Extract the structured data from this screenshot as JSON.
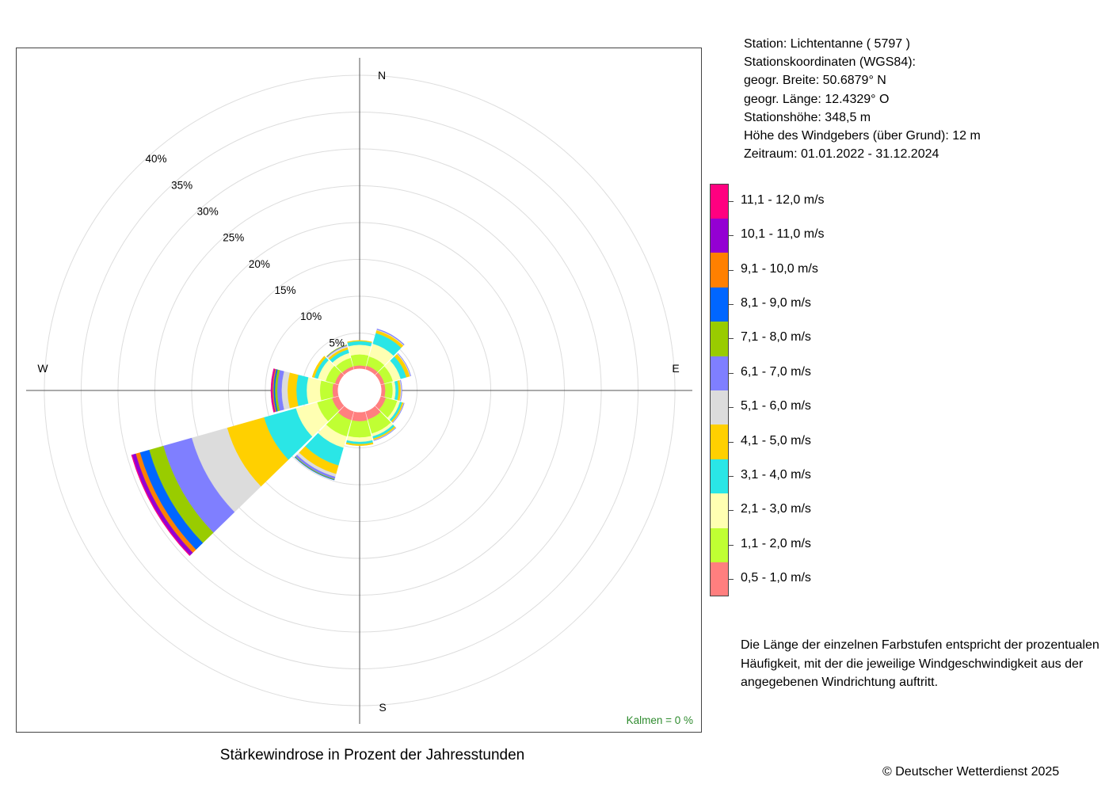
{
  "station": {
    "line1": "Station:  Lichtentanne  ( 5797 )",
    "line2": "Stationskoordinaten (WGS84):",
    "line3": "geogr. Breite: 50.6879° N",
    "line4": "geogr. Länge: 12.4329° O",
    "line5": "Stationshöhe: 348,5 m",
    "line6": "Höhe des Windgebers (über Grund): 12 m",
    "line7": "Zeitraum: 01.01.2022 - 31.12.2024"
  },
  "note": "Die Länge der einzelnen Farbstufen entspricht der prozentualen Häufigkeit, mit der die jeweilige Windgeschwindigkeit aus der angegebenen Windrichtung auftritt.",
  "caption": "Stärkewindrose in Prozent der Jahresstunden",
  "copyright": "© Deutscher Wetterdienst  2025",
  "chart_data": {
    "type": "bar",
    "subtype": "polar-stacked",
    "title": "Stärkewindrose in Prozent der Jahresstunden",
    "directions_deg": [
      0,
      30,
      60,
      90,
      120,
      150,
      180,
      210,
      240,
      270,
      300,
      330
    ],
    "compass_labels": {
      "n": "N",
      "e": "E",
      "s": "S",
      "w": "W"
    },
    "radial_ticks": [
      5,
      10,
      15,
      20,
      25,
      30,
      35,
      40
    ],
    "radial_tick_labels": [
      "5%",
      "10%",
      "15%",
      "20%",
      "25%",
      "30%",
      "35%",
      "40%"
    ],
    "rlim": [
      0,
      45
    ],
    "inner_circle_pct": 2.8,
    "calm_label": "Kalmen  =  0 %",
    "legend_position": "right",
    "grid": true,
    "series": [
      {
        "name": "0,5 - 1,0 m/s",
        "color": "#ff7f7f",
        "values": [
          0.6,
          0.7,
          0.7,
          0.7,
          0.9,
          1.3,
          1.4,
          1.4,
          1.1,
          0.9,
          0.7,
          0.6
        ]
      },
      {
        "name": "1,1 - 2,0 m/s",
        "color": "#c0ff33",
        "values": [
          1.5,
          1.3,
          1.2,
          1.0,
          1.6,
          2.0,
          2.2,
          2.3,
          2.1,
          1.7,
          1.3,
          1.2
        ]
      },
      {
        "name": "2,1 - 3,0 m/s",
        "color": "#ffffb2",
        "values": [
          1.3,
          1.8,
          1.1,
          0.4,
          0.4,
          0.4,
          0.6,
          1.6,
          3.0,
          1.8,
          1.1,
          0.7
        ]
      },
      {
        "name": "3,1 - 4,0 m/s",
        "color": "#2ae6e6",
        "values": [
          0.5,
          1.5,
          0.8,
          0.4,
          0.3,
          0.3,
          0.3,
          2.5,
          4.5,
          1.4,
          0.5,
          0.5
        ]
      },
      {
        "name": "4,1 - 5,0 m/s",
        "color": "#ffd000",
        "values": [
          0.1,
          0.4,
          0.5,
          0.3,
          0.2,
          0.2,
          0.2,
          1.2,
          5.2,
          1.2,
          0.3,
          0.3
        ]
      },
      {
        "name": "5,1 - 6,0 m/s",
        "color": "#dcdcdc",
        "values": [
          0,
          0.1,
          0.1,
          0.1,
          0.05,
          0.05,
          0,
          0.4,
          5.0,
          0.8,
          0,
          0.2
        ]
      },
      {
        "name": "6,1 - 7,0 m/s",
        "color": "#7f7fff",
        "values": [
          0,
          0.1,
          0.05,
          0.05,
          0.05,
          0.05,
          0,
          0.3,
          4.0,
          0.6,
          0,
          0.1
        ]
      },
      {
        "name": "7,1 - 8,0 m/s",
        "color": "#99cc00",
        "values": [
          0,
          0,
          0,
          0,
          0,
          0,
          0,
          0.1,
          2.0,
          0.3,
          0,
          0.05
        ]
      },
      {
        "name": "8,1 - 9,0 m/s",
        "color": "#0066ff",
        "values": [
          0,
          0,
          0,
          0,
          0,
          0,
          0,
          0.05,
          1.3,
          0.2,
          0,
          0
        ]
      },
      {
        "name": "9,1 - 10,0 m/s",
        "color": "#ff8000",
        "values": [
          0,
          0,
          0,
          0,
          0,
          0,
          0,
          0,
          0.6,
          0.15,
          0,
          0
        ]
      },
      {
        "name": "10,1 - 11,0 m/s",
        "color": "#9400d3",
        "values": [
          0,
          0,
          0,
          0,
          0,
          0,
          0,
          0,
          0.5,
          0.1,
          0,
          0
        ]
      },
      {
        "name": "11,1 - 12,0 m/s",
        "color": "#ff0080",
        "values": [
          0,
          0,
          0,
          0,
          0,
          0,
          0,
          0,
          0.1,
          0.1,
          0,
          0
        ]
      }
    ]
  }
}
